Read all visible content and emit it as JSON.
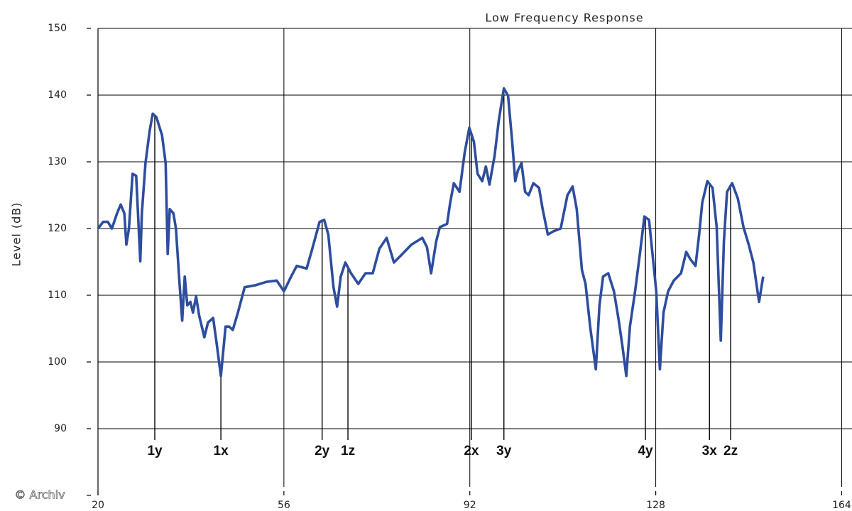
{
  "chart_data": {
    "type": "line",
    "title": "Low Frequency Response",
    "y_label": "Level (dB)",
    "watermark": "© Archiv",
    "xlim": [
      20,
      166
    ],
    "xticks": [
      20,
      56,
      92,
      128,
      164
    ],
    "ylim": [
      80,
      150
    ],
    "yticks": [
      90,
      100,
      110,
      120,
      130,
      140,
      150
    ],
    "grid": true,
    "series": [
      {
        "color": "#2e4d9e",
        "x": [
          20,
          21,
          21.9,
          22.7,
          23.7,
          24.4,
          25.1,
          25.5,
          26.0,
          26.7,
          27.4,
          28.2,
          28.5,
          29.2,
          30.0,
          30.6,
          31.3,
          32.4,
          33.1,
          33.5,
          33.9,
          34.6,
          35.1,
          35.8,
          36.3,
          36.8,
          37.3,
          37.9,
          38.4,
          39.0,
          39.6,
          40.6,
          41.3,
          42.3,
          42.9,
          43.8,
          44.7,
          45.4,
          46.1,
          47.1,
          48.4,
          50.5,
          52.6,
          54.6,
          56.0,
          57.4,
          58.5,
          60.4,
          61.5,
          62.9,
          63.8,
          64.6,
          65.6,
          66.3,
          67.0,
          67.9,
          69.0,
          70.4,
          71.8,
          73.2,
          74.5,
          75.9,
          77.3,
          78.7,
          80.7,
          82.8,
          83.7,
          84.5,
          85.5,
          86.2,
          87.6,
          88.2,
          88.9,
          90.0,
          91.0,
          91.9,
          92.8,
          93.5,
          94.4,
          95.1,
          95.8,
          96.8,
          97.6,
          98.6,
          99.4,
          100.2,
          100.8,
          101.3,
          102.0,
          102.7,
          103.4,
          104.3,
          105.4,
          106.1,
          107.1,
          108.2,
          109.6,
          110.9,
          111.9,
          112.7,
          113.7,
          114.4,
          115.3,
          116.4,
          117.1,
          117.8,
          118.8,
          119.9,
          120.8,
          121.6,
          122.3,
          123.0,
          124.0,
          124.9,
          125.8,
          126.7,
          127.4,
          128.1,
          128.8,
          129.5,
          130.4,
          131.5,
          132.9,
          133.9,
          134.7,
          135.7,
          136.4,
          137.0,
          138.0,
          139.0,
          139.8,
          140.6,
          141.2,
          141.8,
          142.8,
          143.9,
          145.0,
          146.0,
          146.9,
          148.0,
          148.8
        ],
        "values": [
          120,
          121,
          121,
          120,
          122.3,
          123.6,
          122.3,
          117.6,
          120,
          128.2,
          127.9,
          115.1,
          122.3,
          129.8,
          134.6,
          137.2,
          136.7,
          134,
          129.8,
          116.2,
          122.9,
          122.3,
          120,
          111.7,
          106.2,
          112.8,
          108.5,
          109,
          107.4,
          109.8,
          106.9,
          103.7,
          105.9,
          106.6,
          103.2,
          97.9,
          105.3,
          105.3,
          104.8,
          107.4,
          111.2,
          111.5,
          112,
          112.2,
          110.6,
          112.8,
          114.4,
          114,
          117,
          121,
          121.3,
          119.1,
          111.2,
          108.3,
          112.8,
          114.9,
          113.3,
          111.7,
          113.3,
          113.3,
          117,
          118.6,
          114.9,
          116,
          117.6,
          118.6,
          117.2,
          113.3,
          118.1,
          120.2,
          120.7,
          123.9,
          126.8,
          125.5,
          131.4,
          135.1,
          133,
          128.2,
          127.1,
          129.3,
          126.6,
          130.9,
          136.2,
          141,
          139.9,
          133,
          127.1,
          128.7,
          129.8,
          125.5,
          125,
          126.8,
          126.1,
          122.9,
          119.1,
          119.6,
          120,
          125,
          126.3,
          122.9,
          113.8,
          111.7,
          105.3,
          98.9,
          108.5,
          112.8,
          113.3,
          110.6,
          106.4,
          102.1,
          97.9,
          105.3,
          110.6,
          116,
          121.8,
          121.3,
          116,
          110.6,
          98.9,
          107.4,
          110.6,
          112.2,
          113.3,
          116.5,
          115.4,
          114.4,
          119.1,
          123.9,
          127.1,
          126.1,
          120.2,
          103.2,
          118.1,
          125.5,
          126.8,
          124.5,
          120.2,
          117.6,
          114.9,
          109,
          112.8
        ]
      }
    ],
    "annotations": [
      {
        "label": "1y",
        "x": 31.0
      },
      {
        "label": "1x",
        "x": 43.8
      },
      {
        "label": "2y",
        "x": 63.4
      },
      {
        "label": "1z",
        "x": 68.4
      },
      {
        "label": "2x",
        "x": 92.3
      },
      {
        "label": "3y",
        "x": 98.6
      },
      {
        "label": "4y",
        "x": 126.0
      },
      {
        "label": "3x",
        "x": 138.4
      },
      {
        "label": "2z",
        "x": 142.5
      }
    ]
  }
}
